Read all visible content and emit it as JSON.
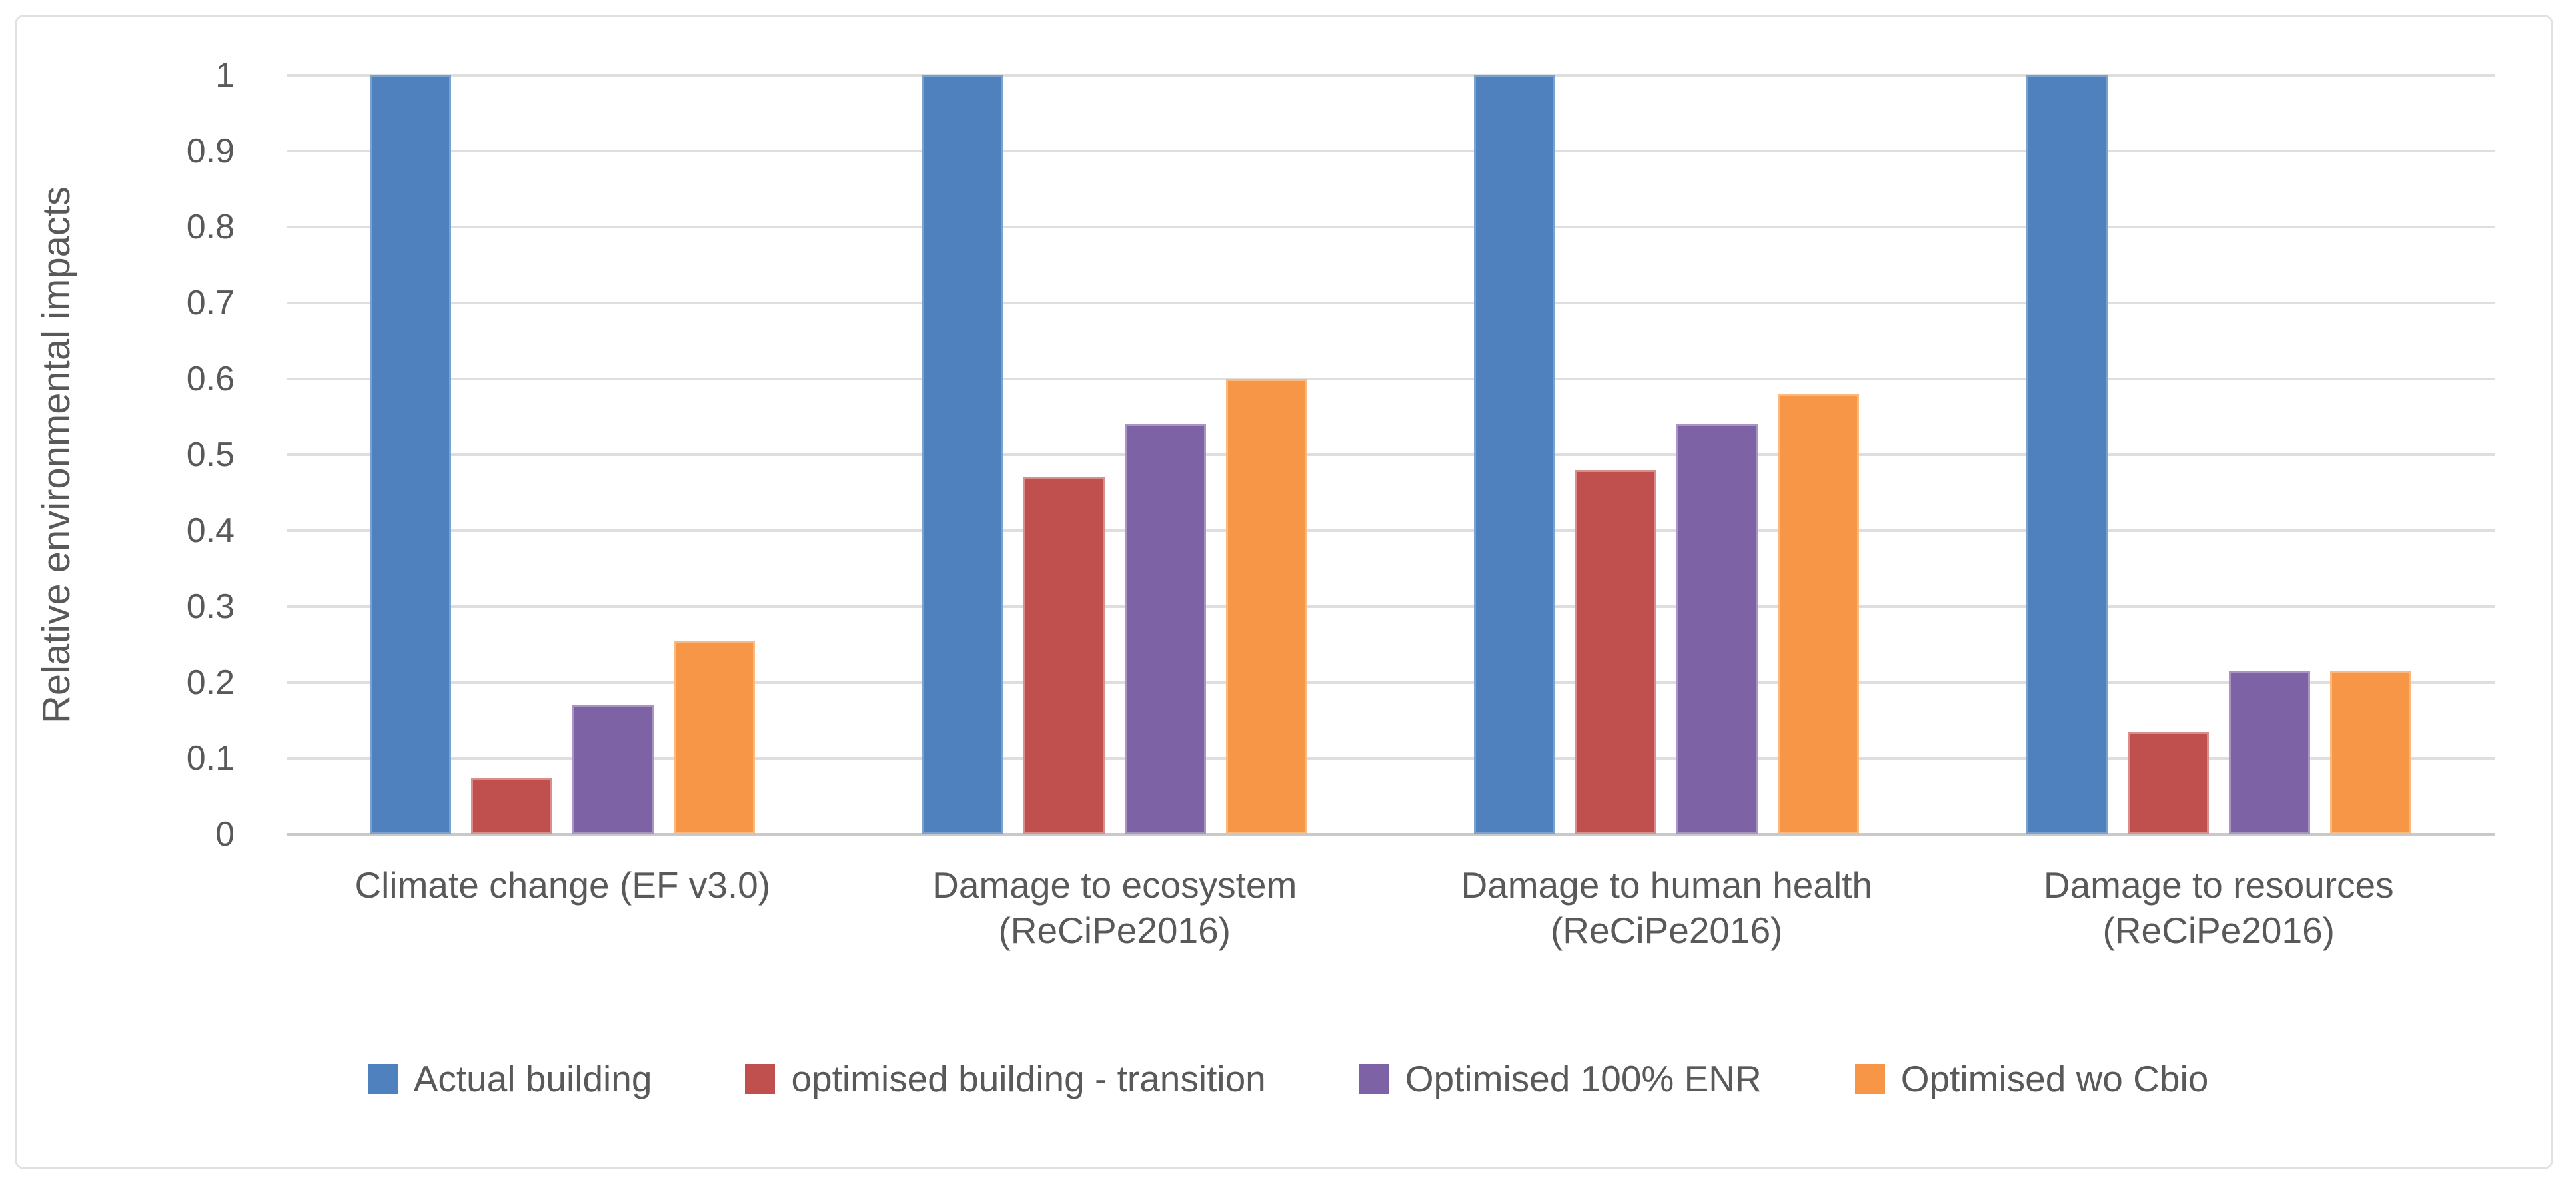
{
  "figure": {
    "background": "#ffffff",
    "frame_border_color": "#e1e1e1",
    "grid_color": "#dedede",
    "axis_line_color": "#c9c9c9",
    "text_color": "#595959"
  },
  "chart_data": {
    "type": "bar",
    "title": "",
    "xlabel": "",
    "ylabel": "Relative environmental impacts",
    "ylim": [
      0,
      1
    ],
    "ytick_step": 0.1,
    "ytick_labels": [
      "0",
      "0.1",
      "0.2",
      "0.3",
      "0.4",
      "0.5",
      "0.6",
      "0.7",
      "0.8",
      "0.9",
      "1"
    ],
    "grid": true,
    "legend_position": "bottom",
    "categories": [
      "Climate change (EF v3.0)",
      "Damage to ecosystem (ReCiPe2016)",
      "Damage to human health (ReCiPe2016)",
      "Damage to resources (ReCiPe2016)"
    ],
    "category_label_lines": [
      [
        "Climate change (EF v3.0)"
      ],
      [
        "Damage to ecosystem",
        "(ReCiPe2016)"
      ],
      [
        "Damage to human health",
        "(ReCiPe2016)"
      ],
      [
        "Damage to resources",
        "(ReCiPe2016)"
      ]
    ],
    "series": [
      {
        "name": "Actual building",
        "color": "#4e81bd",
        "border_color": "#7ba2cf",
        "values": [
          1,
          1,
          1,
          1
        ]
      },
      {
        "name": "optimised building - transition",
        "color": "#c0504d",
        "border_color": "#d78e8c",
        "values": [
          0.075,
          0.47,
          0.48,
          0.135
        ]
      },
      {
        "name": "Optimised 100% ENR",
        "color": "#7d63a5",
        "border_color": "#a995c4",
        "values": [
          0.17,
          0.54,
          0.54,
          0.215
        ]
      },
      {
        "name": "Optimised wo Cbio",
        "color": "#f79646",
        "border_color": "#fab97e",
        "values": [
          0.255,
          0.6,
          0.58,
          0.215
        ]
      }
    ]
  }
}
